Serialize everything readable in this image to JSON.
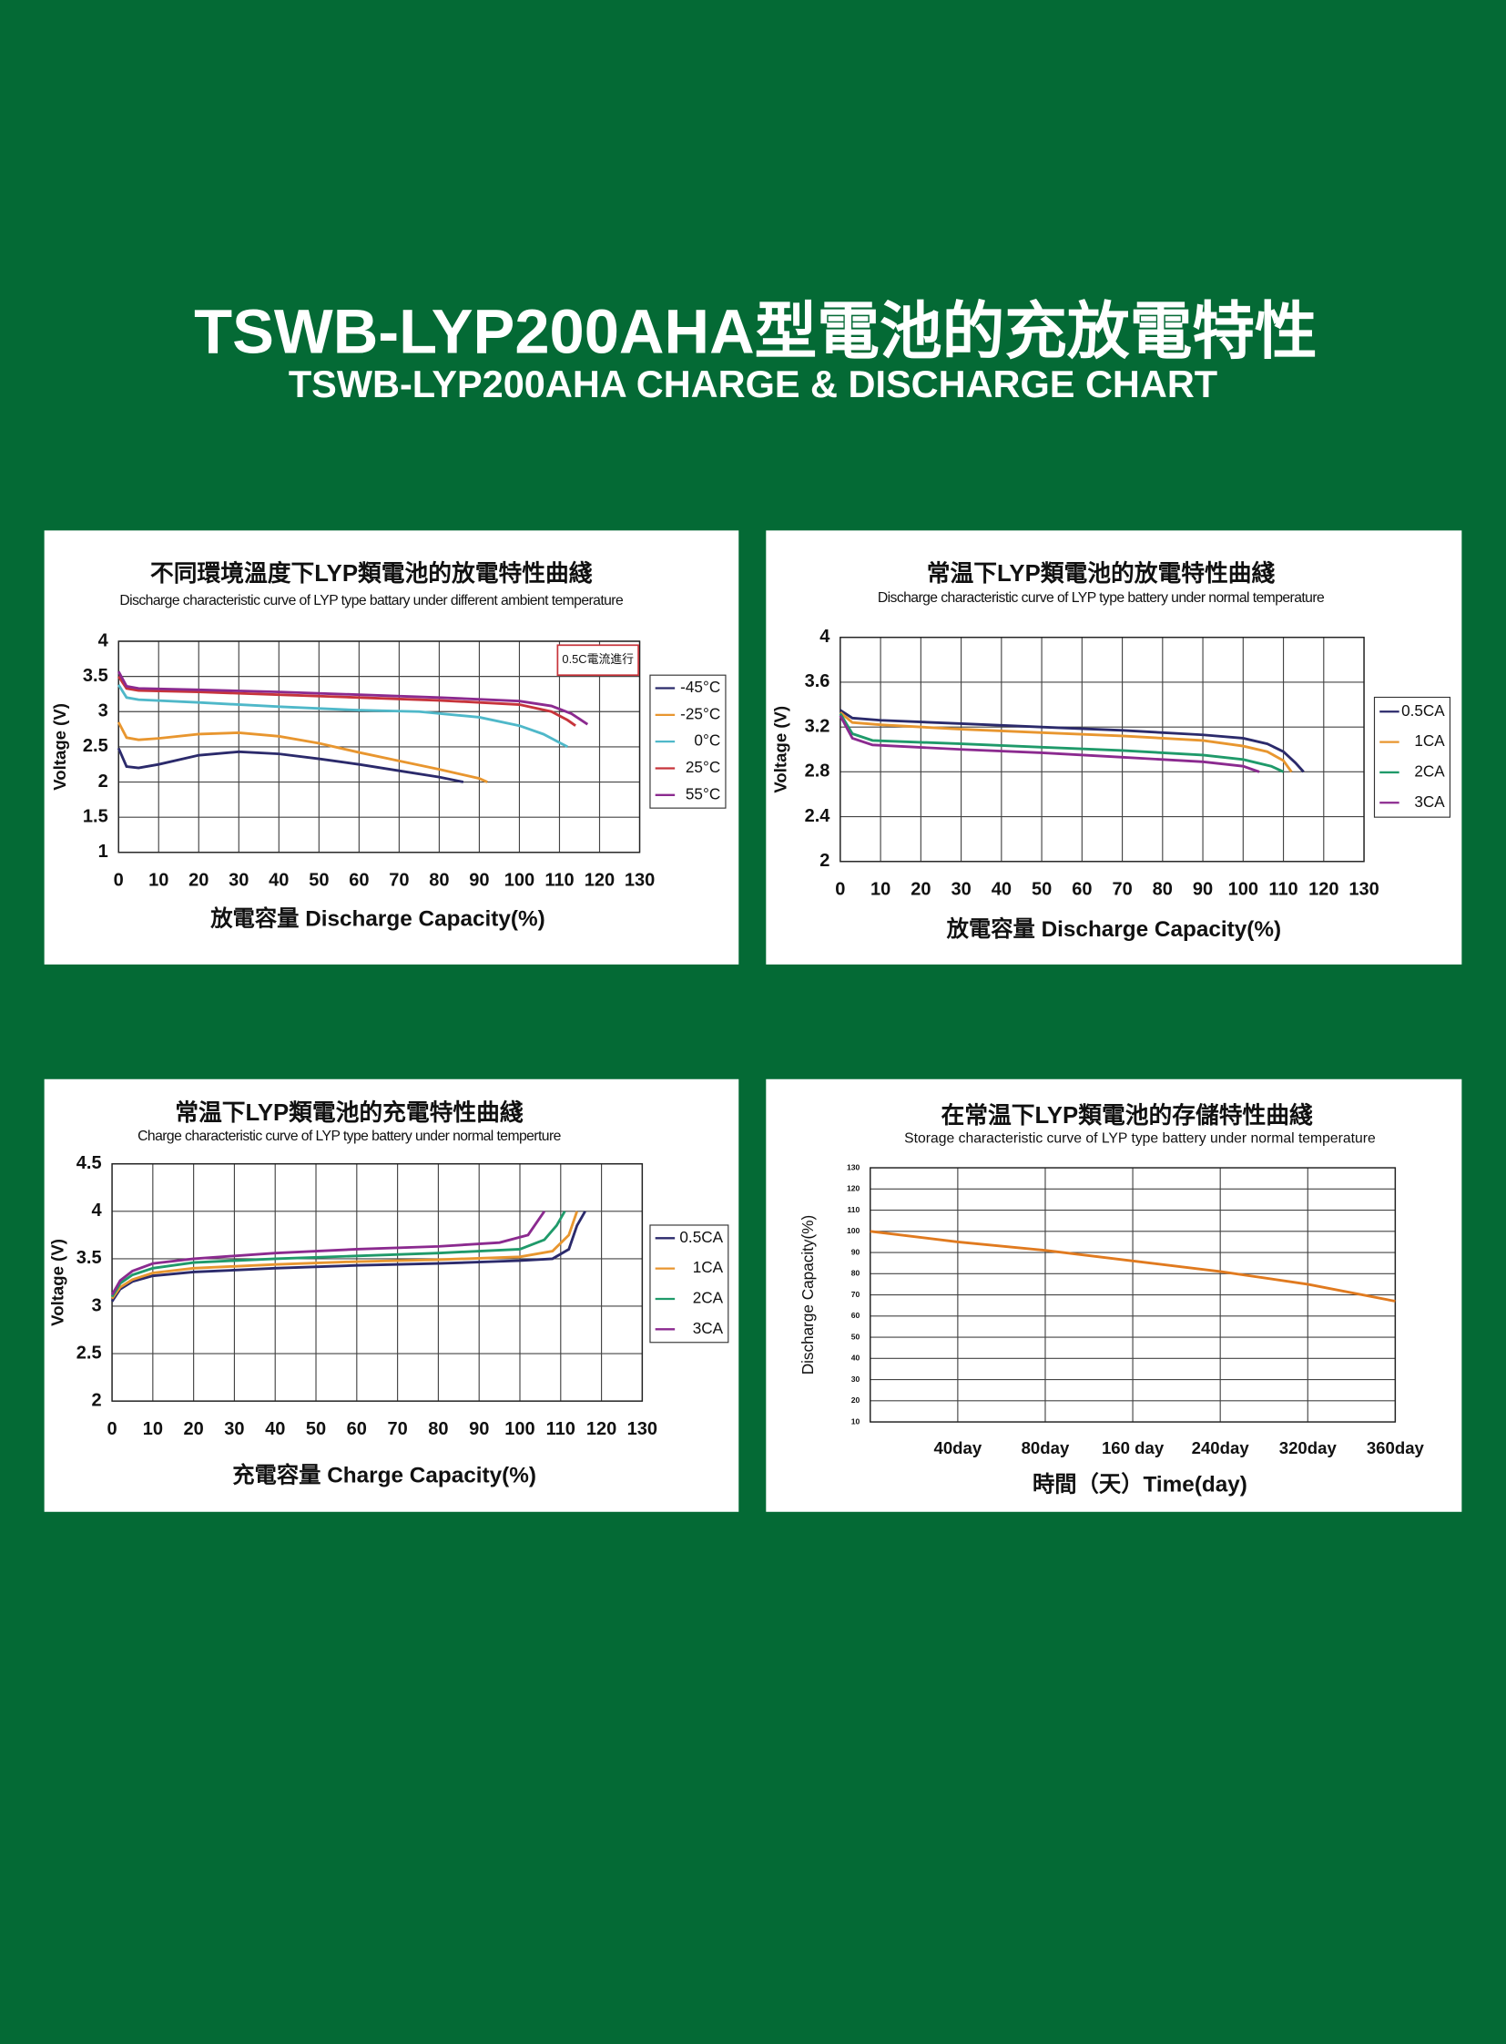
{
  "header": {
    "title": "TSWB-LYP200AHA型電池的充放電特性",
    "subtitle": "TSWB-LYP200AHA CHARGE & DISCHARGE CHART"
  },
  "chart_data": [
    {
      "type": "line",
      "title": "不同環境溫度下LYP類電池的放電特性曲綫",
      "subtitle": "Discharge characteristic curve of LYP type battary under different ambient temperature",
      "x_label": "放電容量 Discharge Capacity(%)",
      "y_label": "Voltage (V)",
      "annotation": "0.5C電流進行",
      "xlim": [
        0,
        130
      ],
      "xticks": [
        0,
        10,
        20,
        30,
        40,
        50,
        60,
        70,
        80,
        90,
        100,
        110,
        120,
        130
      ],
      "ylim": [
        1,
        4
      ],
      "yticks": [
        1,
        1.5,
        2,
        2.5,
        3,
        3.5,
        4
      ],
      "grid": true,
      "legend": "right",
      "series": [
        {
          "name": "-45°C",
          "color": "#2b2a6b",
          "x": [
            0,
            2,
            5,
            10,
            20,
            30,
            40,
            50,
            60,
            70,
            80,
            86
          ],
          "values": [
            2.48,
            2.22,
            2.2,
            2.25,
            2.38,
            2.43,
            2.4,
            2.33,
            2.25,
            2.16,
            2.07,
            2.0
          ]
        },
        {
          "name": "-25°C",
          "color": "#e8962f",
          "x": [
            0,
            2,
            5,
            10,
            20,
            30,
            40,
            50,
            60,
            70,
            80,
            90,
            92
          ],
          "values": [
            2.85,
            2.63,
            2.6,
            2.62,
            2.68,
            2.7,
            2.65,
            2.55,
            2.42,
            2.3,
            2.18,
            2.05,
            2.0
          ]
        },
        {
          "name": "0°C",
          "color": "#4fb8c9",
          "x": [
            0,
            2,
            5,
            20,
            40,
            60,
            75,
            90,
            100,
            106,
            110,
            112
          ],
          "values": [
            3.38,
            3.2,
            3.17,
            3.13,
            3.07,
            3.02,
            3.0,
            2.92,
            2.8,
            2.68,
            2.56,
            2.5
          ]
        },
        {
          "name": "25°C",
          "color": "#c7343b",
          "x": [
            0,
            2,
            5,
            20,
            40,
            60,
            80,
            100,
            108,
            112,
            114
          ],
          "values": [
            3.5,
            3.33,
            3.3,
            3.28,
            3.24,
            3.2,
            3.16,
            3.1,
            3.0,
            2.88,
            2.8
          ]
        },
        {
          "name": "55°C",
          "color": "#8b2a8f",
          "x": [
            0,
            2,
            5,
            20,
            40,
            60,
            80,
            100,
            108,
            113,
            117
          ],
          "values": [
            3.57,
            3.36,
            3.33,
            3.31,
            3.28,
            3.24,
            3.2,
            3.15,
            3.08,
            2.97,
            2.82
          ]
        }
      ]
    },
    {
      "type": "line",
      "title": "常温下LYP類電池的放電特性曲綫",
      "subtitle": "Discharge characteristic curve of LYP type battery under normal temperature",
      "x_label": "放電容量 Discharge Capacity(%)",
      "y_label": "Voltage (V)",
      "xlim": [
        0,
        130
      ],
      "xticks": [
        0,
        10,
        20,
        30,
        40,
        50,
        60,
        70,
        80,
        90,
        100,
        110,
        120,
        130
      ],
      "ylim": [
        2,
        4
      ],
      "yticks": [
        2,
        2.4,
        2.8,
        3.2,
        3.6,
        4
      ],
      "grid": true,
      "legend": "right",
      "series": [
        {
          "name": "0.5CA",
          "color": "#2b2a6b",
          "x": [
            0,
            3,
            10,
            30,
            50,
            70,
            90,
            100,
            106,
            110,
            113,
            115
          ],
          "values": [
            3.35,
            3.28,
            3.26,
            3.23,
            3.2,
            3.17,
            3.13,
            3.1,
            3.05,
            2.98,
            2.88,
            2.8
          ]
        },
        {
          "name": "1CA",
          "color": "#e8962f",
          "x": [
            0,
            3,
            10,
            30,
            50,
            70,
            90,
            100,
            106,
            110,
            112
          ],
          "values": [
            3.33,
            3.24,
            3.22,
            3.18,
            3.15,
            3.12,
            3.08,
            3.03,
            2.98,
            2.9,
            2.8
          ]
        },
        {
          "name": "2CA",
          "color": "#1f9a6a",
          "x": [
            0,
            3,
            8,
            30,
            50,
            70,
            90,
            100,
            107,
            110
          ],
          "values": [
            3.32,
            3.14,
            3.08,
            3.05,
            3.02,
            2.99,
            2.95,
            2.91,
            2.85,
            2.8
          ]
        },
        {
          "name": "3CA",
          "color": "#8b2a8f",
          "x": [
            0,
            3,
            8,
            30,
            50,
            70,
            90,
            100,
            104
          ],
          "values": [
            3.3,
            3.1,
            3.04,
            3.0,
            2.97,
            2.93,
            2.89,
            2.85,
            2.8
          ]
        }
      ]
    },
    {
      "type": "line",
      "title": "常温下LYP類電池的充電特性曲綫",
      "subtitle": "Charge characteristic curve of LYP type battery under normal temperture",
      "x_label": "充電容量 Charge Capacity(%)",
      "y_label": "Voltage (V)",
      "xlim": [
        0,
        130
      ],
      "xticks": [
        0,
        10,
        20,
        30,
        40,
        50,
        60,
        70,
        80,
        90,
        100,
        110,
        120,
        130
      ],
      "ylim": [
        2,
        4.5
      ],
      "yticks": [
        2,
        2.5,
        3,
        3.5,
        4,
        4.5
      ],
      "grid": true,
      "legend": "right",
      "series": [
        {
          "name": "0.5CA",
          "color": "#2b2a6b",
          "x": [
            0,
            2,
            5,
            10,
            20,
            40,
            60,
            80,
            100,
            108,
            112,
            114,
            116
          ],
          "values": [
            3.05,
            3.18,
            3.26,
            3.32,
            3.36,
            3.4,
            3.43,
            3.45,
            3.48,
            3.5,
            3.6,
            3.85,
            4.0
          ]
        },
        {
          "name": "1CA",
          "color": "#e8962f",
          "x": [
            0,
            2,
            5,
            10,
            20,
            40,
            60,
            80,
            100,
            108,
            112,
            114
          ],
          "values": [
            3.08,
            3.2,
            3.28,
            3.35,
            3.4,
            3.44,
            3.47,
            3.49,
            3.52,
            3.58,
            3.75,
            4.0
          ]
        },
        {
          "name": "2CA",
          "color": "#1f9a6a",
          "x": [
            0,
            2,
            5,
            10,
            20,
            40,
            60,
            80,
            100,
            106,
            109,
            111
          ],
          "values": [
            3.1,
            3.24,
            3.33,
            3.4,
            3.46,
            3.5,
            3.53,
            3.56,
            3.6,
            3.7,
            3.85,
            4.0
          ]
        },
        {
          "name": "3CA",
          "color": "#8b2a8f",
          "x": [
            0,
            2,
            5,
            10,
            20,
            40,
            60,
            80,
            95,
            102,
            106
          ],
          "values": [
            3.12,
            3.27,
            3.37,
            3.45,
            3.5,
            3.56,
            3.6,
            3.63,
            3.67,
            3.75,
            4.0
          ]
        }
      ]
    },
    {
      "type": "line",
      "title": "在常温下LYP類電池的存儲特性曲綫",
      "subtitle": "Storage characteristic curve of LYP type battery under normal temperature",
      "x_label": "時間（天）Time(day)",
      "y_label": "Discharge Capacity(%)",
      "categories": [
        null,
        "40day",
        "80day",
        "160 day",
        "240day",
        "320day",
        "360day"
      ],
      "ylim": [
        10,
        130
      ],
      "yticks": [
        10,
        20,
        30,
        40,
        50,
        60,
        70,
        80,
        90,
        100,
        110,
        120,
        130
      ],
      "grid": true,
      "color": "#e07a1f",
      "values": [
        100,
        95,
        91,
        86,
        81,
        75,
        67
      ]
    }
  ]
}
